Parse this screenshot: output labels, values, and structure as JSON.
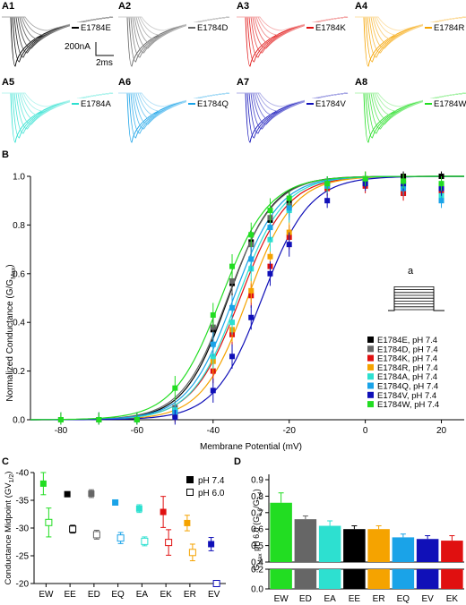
{
  "panel_letters": {
    "a1": "A1",
    "a2": "A2",
    "a3": "A3",
    "a4": "A4",
    "a5": "A5",
    "a6": "A6",
    "a7": "A7",
    "a8": "A8",
    "b": "B",
    "c": "C",
    "d": "D"
  },
  "colors": {
    "EE": "#000000",
    "ED": "#666666",
    "EK": "#e01010",
    "ER": "#f5a300",
    "EA": "#2de0d0",
    "EQ": "#1aa3e8",
    "EV": "#1010b8",
    "EW": "#22dd22"
  },
  "scale_bar": {
    "current": "200nA",
    "time": "2ms"
  },
  "traces": [
    {
      "key": "EE",
      "label": "E1784E"
    },
    {
      "key": "ED",
      "label": "E1784D"
    },
    {
      "key": "EK",
      "label": "E1784K"
    },
    {
      "key": "ER",
      "label": "E1784R"
    },
    {
      "key": "EA",
      "label": "E1784A"
    },
    {
      "key": "EQ",
      "label": "E1784Q"
    },
    {
      "key": "EV",
      "label": "E1784V"
    },
    {
      "key": "EW",
      "label": "E1784W"
    }
  ],
  "protocol_label": "a",
  "chart_data": [
    {
      "panel": "B",
      "type": "scatter",
      "xlabel": "Membrane Potential (mV)",
      "ylabel_main": "Normalized Conductance (G/G",
      "ylabel_sub": "Max",
      "ylabel_close": ")",
      "xlim": [
        -88,
        26
      ],
      "ylim": [
        0,
        1
      ],
      "x_ticks": [
        "-80",
        "-60",
        "-40",
        "-20",
        "0",
        "20"
      ],
      "y_ticks": [
        "0.0",
        "0.2",
        "0.4",
        "0.6",
        "0.8",
        "1.0"
      ],
      "x": [
        -80,
        -70,
        -60,
        -50,
        -40,
        -35,
        -30,
        -25,
        -20,
        -10,
        0,
        10,
        20
      ],
      "series": [
        {
          "key": "EE",
          "name": "E1784E, pH 7.4",
          "v_half": -36.0,
          "slope": 5.8,
          "values": [
            0.0,
            0.0,
            0.0,
            0.04,
            0.37,
            0.56,
            0.73,
            0.82,
            0.89,
            0.97,
            0.99,
            1.0,
            1.0
          ]
        },
        {
          "key": "ED",
          "name": "E1784D, pH 7.4",
          "v_half": -36.2,
          "slope": 6.0,
          "values": [
            0.0,
            0.0,
            0.0,
            0.05,
            0.38,
            0.57,
            0.72,
            0.83,
            0.88,
            0.97,
            0.99,
            0.98,
            0.96
          ]
        },
        {
          "key": "EK",
          "name": "E1784K, pH 7.4",
          "v_half": -32.9,
          "slope": 6.2,
          "values": [
            0.0,
            0.0,
            0.0,
            0.02,
            0.2,
            0.35,
            0.51,
            0.63,
            0.75,
            0.95,
            0.96,
            0.93,
            0.94
          ]
        },
        {
          "key": "ER",
          "name": "E1784R, pH 7.4",
          "v_half": -30.9,
          "slope": 6.0,
          "values": [
            0.0,
            0.0,
            0.0,
            0.02,
            0.24,
            0.37,
            0.53,
            0.67,
            0.77,
            0.96,
            0.99,
            0.98,
            0.95
          ]
        },
        {
          "key": "EA",
          "name": "E1784A, pH 7.4",
          "v_half": -33.5,
          "slope": 6.0,
          "values": [
            0.0,
            0.0,
            0.0,
            0.04,
            0.26,
            0.4,
            0.62,
            0.74,
            0.86,
            0.97,
            0.98,
            0.96,
            0.92
          ]
        },
        {
          "key": "EQ",
          "name": "E1784Q, pH 7.4",
          "v_half": -34.6,
          "slope": 6.0,
          "values": [
            0.0,
            0.0,
            0.0,
            0.03,
            0.31,
            0.46,
            0.66,
            0.79,
            0.87,
            0.96,
            0.98,
            0.95,
            0.9
          ]
        },
        {
          "key": "EV",
          "name": "E1784V, pH 7.4",
          "v_half": -27.1,
          "slope": 6.2,
          "values": [
            0.0,
            0.0,
            0.0,
            0.01,
            0.12,
            0.26,
            0.42,
            0.6,
            0.72,
            0.9,
            0.97,
            0.97,
            0.95
          ]
        },
        {
          "key": "EW",
          "name": "E1784W, pH 7.4",
          "v_half": -37.9,
          "slope": 6.3,
          "values": [
            0.0,
            0.0,
            0.0,
            0.13,
            0.43,
            0.63,
            0.76,
            0.86,
            0.91,
            0.97,
            0.99,
            0.98,
            0.97
          ]
        }
      ]
    },
    {
      "panel": "C",
      "type": "scatter",
      "ylabel_main": "Conductance Midpoint (GV",
      "ylabel_sub": "1/2",
      "ylabel_close": ")",
      "ylim": [
        -40,
        -20
      ],
      "y_ticks": [
        "-40",
        "-35",
        "-30",
        "-25",
        "-20"
      ],
      "categories": [
        "EW",
        "EE",
        "ED",
        "EQ",
        "EA",
        "EK",
        "ER",
        "EV"
      ],
      "series": [
        {
          "name": "pH 7.4",
          "marker": "filled",
          "values": [
            -38.0,
            -36.1,
            -36.2,
            -34.6,
            -33.5,
            -32.9,
            -30.9,
            -27.1
          ],
          "errors": [
            2.0,
            0.3,
            0.7,
            0.4,
            0.7,
            2.8,
            1.4,
            1.2
          ]
        },
        {
          "name": "pH 6.0",
          "marker": "open",
          "values": [
            -31.0,
            -29.8,
            -28.8,
            -28.2,
            -27.6,
            -27.4,
            -25.6,
            -20.0
          ],
          "errors": [
            2.6,
            0.7,
            0.8,
            1.0,
            0.8,
            2.3,
            1.5,
            0.5
          ]
        }
      ]
    },
    {
      "panel": "D",
      "type": "bar",
      "ylabel_main": "G",
      "ylabel_sub1": "Max",
      "ylabel_mid": " pH 6.0 (G",
      "ylabel_sub2": "6.0",
      "ylabel_mid2": "/G",
      "ylabel_sub3": "7.4",
      "ylabel_close": ")",
      "ylim": [
        0,
        1
      ],
      "y_break": [
        0.2,
        0.4
      ],
      "y_ticks": [
        "0.0",
        "0.2",
        "0.4",
        "0.5",
        "0.6",
        "0.7",
        "0.8",
        "0.9"
      ],
      "categories": [
        "EW",
        "ED",
        "EA",
        "EE",
        "ER",
        "EQ",
        "EV",
        "EK"
      ],
      "values": [
        0.76,
        0.66,
        0.62,
        0.6,
        0.6,
        0.55,
        0.54,
        0.53
      ],
      "errors": [
        0.06,
        0.02,
        0.03,
        0.02,
        0.02,
        0.02,
        0.02,
        0.03
      ]
    }
  ]
}
